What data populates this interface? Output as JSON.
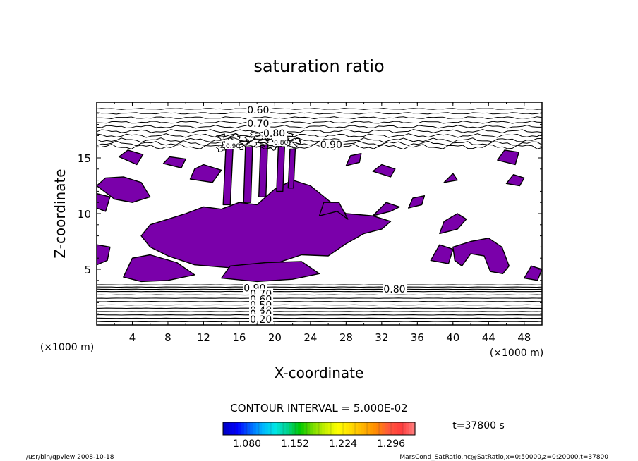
{
  "chart_data": {
    "type": "heatmap",
    "title": "saturation ratio",
    "xlabel": "X-coordinate",
    "ylabel": "Z-coordinate",
    "x_unit": "(×1000 m)",
    "y_unit": "(×1000 m)",
    "xlim": [
      0,
      50
    ],
    "ylim": [
      0,
      20
    ],
    "x_ticks": [
      4,
      8,
      12,
      16,
      20,
      24,
      28,
      32,
      36,
      40,
      44,
      48
    ],
    "y_ticks": [
      5,
      10,
      15
    ],
    "contour_labels": [
      "0.60",
      "0.70",
      "0.80",
      "0.90",
      "0.90",
      "0.80",
      "0.90",
      "0.80",
      "0.70",
      "0.60",
      "0.50",
      "0.40",
      "0.30",
      "0.20"
    ],
    "contour_interval_text": "CONTOUR INTERVAL = 5.000E-02",
    "colorbar": {
      "ticks": [
        "1.080",
        "1.152",
        "1.224",
        "1.296"
      ],
      "min": 1.044,
      "max": 1.332,
      "colors": [
        "#0000c8",
        "#0000ff",
        "#0060ff",
        "#00b4ff",
        "#00e6e6",
        "#00d28c",
        "#00c800",
        "#78dc00",
        "#c8f000",
        "#ffff00",
        "#ffdc00",
        "#ffb400",
        "#ff8c00",
        "#ff5a3c",
        "#ff3c3c",
        "#ff7878"
      ]
    },
    "fill_color": "#7a00aa",
    "time_label": "t=37800 s"
  },
  "footer": {
    "left": "/usr/bin/gpview   2008-10-18",
    "right": "MarsCond_SatRatio.nc@SatRatio,x=0:50000,z=0:20000,t=37800"
  }
}
